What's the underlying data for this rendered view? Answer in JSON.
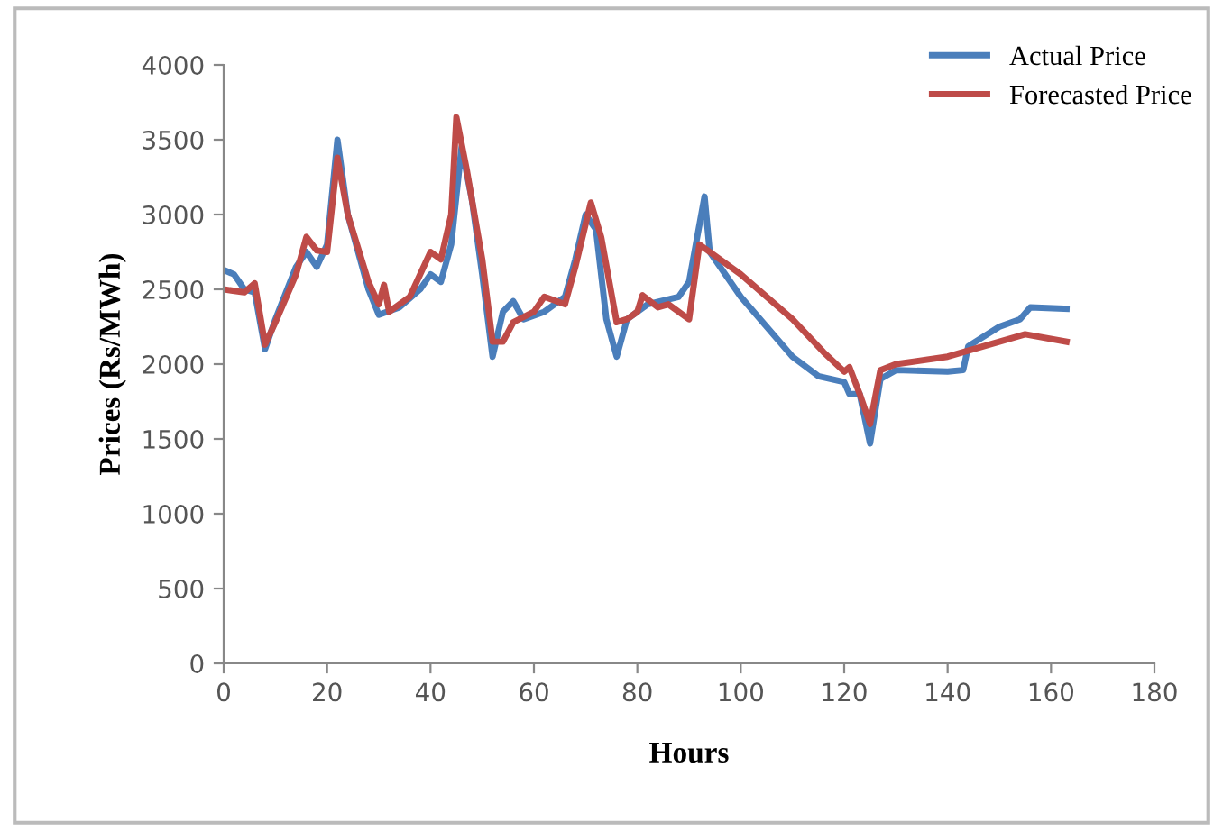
{
  "chart_data": {
    "type": "line",
    "xlabel": "Hours",
    "ylabel": "Prices (Rs/MWh)",
    "xlim": [
      0,
      180
    ],
    "xticks": [
      0,
      20,
      40,
      60,
      80,
      100,
      120,
      140,
      160,
      180
    ],
    "ylim": [
      0,
      4000
    ],
    "yticks": [
      0,
      500,
      1000,
      1500,
      2000,
      2500,
      3000,
      3500,
      4000
    ],
    "grid": false,
    "legend": "top right",
    "marker": "none",
    "line_style": "solid",
    "series": [
      {
        "name": "Actual Price",
        "color": "#4a7ebb",
        "x": [
          0,
          2,
          4,
          6,
          8,
          10,
          14,
          16,
          18,
          20,
          22,
          24,
          28,
          30,
          34,
          38,
          40,
          42,
          44,
          46,
          48,
          50,
          52,
          54,
          56,
          58,
          62,
          66,
          68,
          70,
          72,
          74,
          76,
          78,
          82,
          88,
          90,
          93,
          94,
          100,
          110,
          115,
          120,
          121,
          123,
          125,
          127,
          130,
          140,
          143,
          144,
          150,
          154,
          156,
          163
        ],
        "values": [
          2630,
          2600,
          2500,
          2480,
          2100,
          2300,
          2650,
          2750,
          2650,
          2800,
          3500,
          3000,
          2500,
          2330,
          2380,
          2500,
          2600,
          2550,
          2800,
          3450,
          3100,
          2600,
          2050,
          2350,
          2420,
          2300,
          2350,
          2450,
          2700,
          3000,
          2900,
          2300,
          2050,
          2300,
          2400,
          2450,
          2550,
          3120,
          2750,
          2450,
          2050,
          1920,
          1880,
          1800,
          1800,
          1470,
          1900,
          1960,
          1950,
          1960,
          2120,
          2250,
          2300,
          2380,
          2370
        ]
      },
      {
        "name": "Forecasted Price",
        "color": "#be4b48",
        "x": [
          0,
          4,
          6,
          8,
          10,
          14,
          16,
          18,
          20,
          22,
          24,
          28,
          30,
          31,
          32,
          36,
          40,
          42,
          44,
          45,
          47,
          50,
          52,
          54,
          56,
          60,
          62,
          66,
          68,
          71,
          73,
          76,
          78,
          80,
          81,
          84,
          86,
          90,
          92,
          100,
          110,
          116,
          120,
          121,
          123,
          125,
          127,
          130,
          140,
          150,
          155,
          163
        ],
        "values": [
          2500,
          2480,
          2540,
          2130,
          2280,
          2600,
          2850,
          2760,
          2750,
          3380,
          3000,
          2550,
          2400,
          2530,
          2350,
          2450,
          2750,
          2700,
          3000,
          3650,
          3300,
          2700,
          2150,
          2150,
          2280,
          2350,
          2450,
          2400,
          2650,
          3080,
          2850,
          2280,
          2300,
          2350,
          2460,
          2380,
          2400,
          2300,
          2800,
          2600,
          2300,
          2080,
          1950,
          1980,
          1800,
          1600,
          1960,
          2000,
          2050,
          2150,
          2200,
          2150
        ]
      }
    ]
  }
}
